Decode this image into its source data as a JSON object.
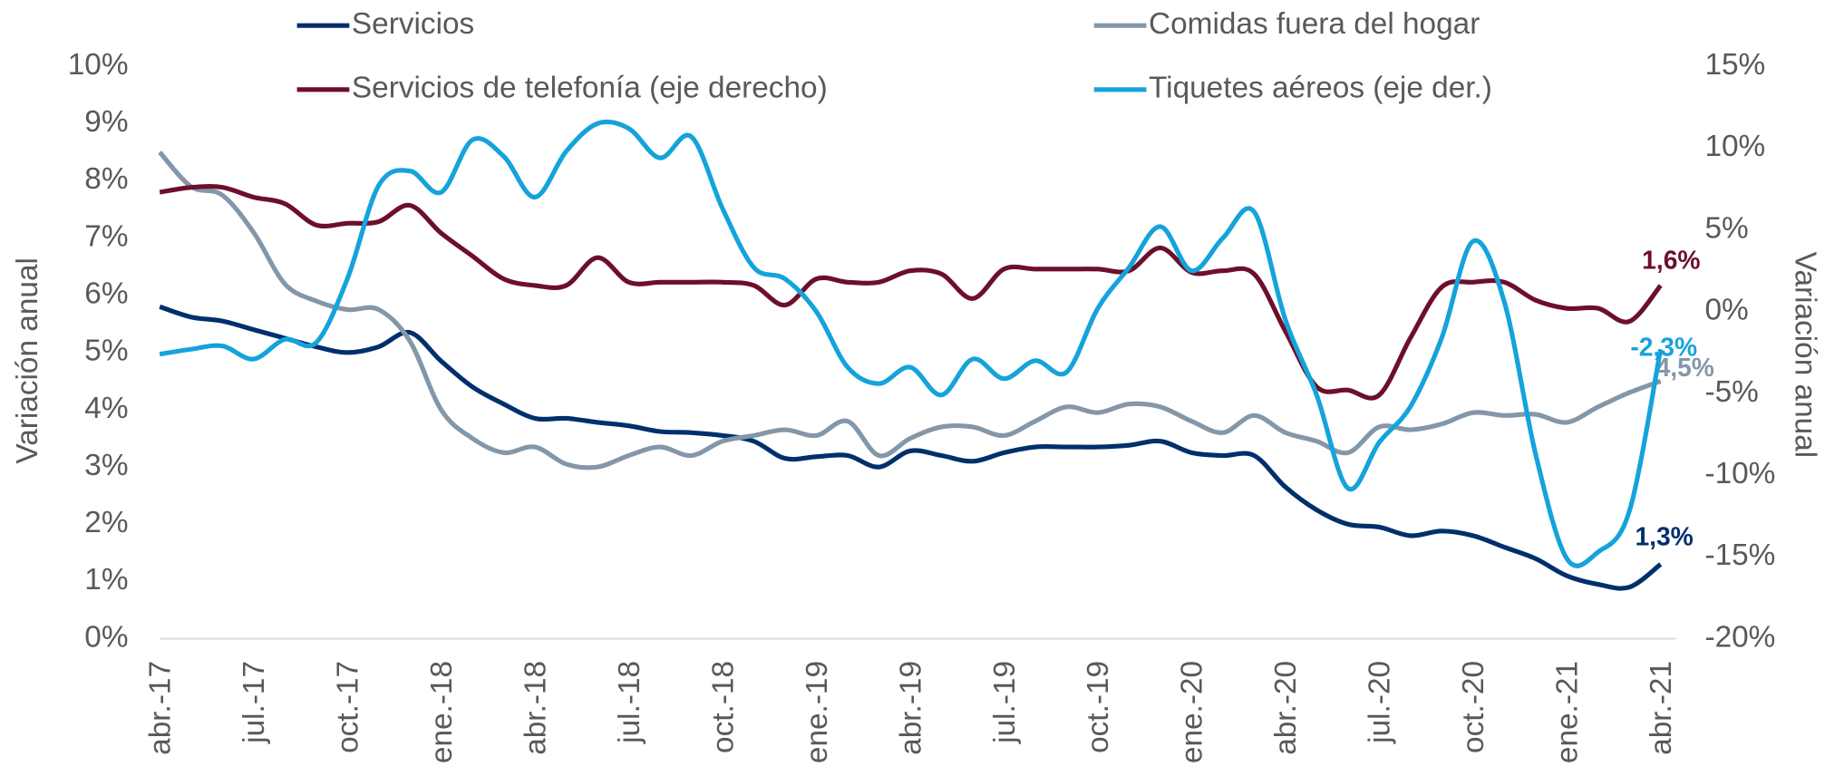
{
  "chart_data": {
    "type": "line",
    "categories": [
      "abr.-17",
      null,
      null,
      "jul.-17",
      null,
      null,
      "oct.-17",
      null,
      null,
      "ene.-18",
      null,
      null,
      "abr.-18",
      null,
      null,
      "jul.-18",
      null,
      null,
      "oct.-18",
      null,
      null,
      "ene.-19",
      null,
      null,
      "abr.-19",
      null,
      null,
      "jul.-19",
      null,
      null,
      "oct.-19",
      null,
      null,
      "ene.-20",
      null,
      null,
      "abr.-20",
      null,
      null,
      "jul.-20",
      null,
      null,
      "oct.-20",
      null,
      null,
      "ene.-21",
      null,
      null,
      "abr.-21"
    ],
    "ylabel": "Variación anual",
    "y2label": "Variación anual",
    "ylim": [
      0,
      10
    ],
    "yticks": [
      {
        "value": 0,
        "label": "0%"
      },
      {
        "value": 1,
        "label": "1%"
      },
      {
        "value": 2,
        "label": "2%"
      },
      {
        "value": 3,
        "label": "3%"
      },
      {
        "value": 4,
        "label": "4%"
      },
      {
        "value": 5,
        "label": "5%"
      },
      {
        "value": 6,
        "label": "6%"
      },
      {
        "value": 7,
        "label": "7%"
      },
      {
        "value": 8,
        "label": "8%"
      },
      {
        "value": 9,
        "label": "9%"
      },
      {
        "value": 10,
        "label": "10%"
      }
    ],
    "y2lim": [
      -20,
      15
    ],
    "y2ticks": [
      {
        "value": -20,
        "label": "-20%"
      },
      {
        "value": -15,
        "label": "-15%"
      },
      {
        "value": -10,
        "label": "-10%"
      },
      {
        "value": -5,
        "label": "-5%"
      },
      {
        "value": 0,
        "label": "0%"
      },
      {
        "value": 5,
        "label": "5%"
      },
      {
        "value": 10,
        "label": "10%"
      },
      {
        "value": 15,
        "label": "15%"
      }
    ],
    "grid": false,
    "series": [
      {
        "name": "Servicios",
        "color": "#002f6c",
        "axis": "y",
        "values": [
          5.8,
          5.62,
          5.55,
          5.4,
          5.25,
          5.1,
          5.0,
          5.1,
          5.35,
          4.85,
          4.4,
          4.1,
          3.85,
          3.85,
          3.78,
          3.72,
          3.62,
          3.6,
          3.55,
          3.45,
          3.15,
          3.18,
          3.2,
          3.0,
          3.28,
          3.2,
          3.1,
          3.25,
          3.35,
          3.35,
          3.35,
          3.38,
          3.45,
          3.25,
          3.2,
          3.2,
          2.65,
          2.25,
          2.0,
          1.95,
          1.8,
          1.88,
          1.8,
          1.6,
          1.4,
          1.1,
          0.95,
          0.9,
          1.3
        ],
        "value_labels": [
          null,
          null,
          null,
          null,
          null,
          null,
          null,
          null,
          null,
          null,
          null,
          null,
          null,
          null,
          null,
          null,
          null,
          null,
          null,
          null,
          null,
          null,
          null,
          null,
          null,
          null,
          null,
          null,
          null,
          null,
          null,
          null,
          null,
          null,
          null,
          null,
          null,
          null,
          null,
          null,
          null,
          null,
          null,
          null,
          null,
          null,
          null,
          null,
          "1,3%"
        ]
      },
      {
        "name": "Comidas fuera del hogar",
        "color": "#8497a8",
        "axis": "y",
        "values": [
          8.5,
          7.9,
          7.75,
          7.1,
          6.2,
          5.9,
          5.75,
          5.75,
          5.2,
          4.0,
          3.5,
          3.25,
          3.35,
          3.05,
          3.0,
          3.2,
          3.35,
          3.2,
          3.45,
          3.55,
          3.65,
          3.55,
          3.8,
          3.2,
          3.5,
          3.7,
          3.7,
          3.55,
          3.8,
          4.05,
          3.95,
          4.1,
          4.05,
          3.8,
          3.6,
          3.9,
          3.6,
          3.45,
          3.25,
          3.7,
          3.65,
          3.75,
          3.95,
          3.9,
          3.92,
          3.78,
          4.05,
          4.3,
          4.5
        ],
        "value_labels": [
          null,
          null,
          null,
          null,
          null,
          null,
          null,
          null,
          null,
          null,
          null,
          null,
          null,
          null,
          null,
          null,
          null,
          null,
          null,
          null,
          null,
          null,
          null,
          null,
          null,
          null,
          null,
          null,
          null,
          null,
          null,
          null,
          null,
          null,
          null,
          null,
          null,
          null,
          null,
          null,
          null,
          null,
          null,
          null,
          null,
          null,
          null,
          null,
          "4,5%"
        ]
      },
      {
        "name": "Servicios de telefonía (eje derecho)",
        "color": "#6d0f2b",
        "axis": "y2",
        "values": [
          7.3,
          7.6,
          7.6,
          7.0,
          6.6,
          5.3,
          5.4,
          5.5,
          6.5,
          4.8,
          3.4,
          2.0,
          1.6,
          1.6,
          3.3,
          1.8,
          1.8,
          1.8,
          1.8,
          1.6,
          0.4,
          2.0,
          1.8,
          1.8,
          2.5,
          2.3,
          0.8,
          2.6,
          2.6,
          2.6,
          2.6,
          2.5,
          3.9,
          2.4,
          2.5,
          2.3,
          -1.2,
          -4.6,
          -4.8,
          -5.1,
          -1.6,
          1.5,
          1.8,
          1.8,
          0.7,
          0.2,
          0.2,
          -0.6,
          1.6
        ],
        "value_labels": [
          null,
          null,
          null,
          null,
          null,
          null,
          null,
          null,
          null,
          null,
          null,
          null,
          null,
          null,
          null,
          null,
          null,
          null,
          null,
          null,
          null,
          null,
          null,
          null,
          null,
          null,
          null,
          null,
          null,
          null,
          null,
          null,
          null,
          null,
          null,
          null,
          null,
          null,
          null,
          null,
          null,
          null,
          null,
          null,
          null,
          null,
          null,
          null,
          "1,6%"
        ]
      },
      {
        "name": "Tiquetes aéreos (eje der.)",
        "color": "#14a3db",
        "axis": "y2",
        "values": [
          -2.6,
          -2.3,
          -2.1,
          -2.9,
          -1.7,
          -1.9,
          2.0,
          7.7,
          8.6,
          7.3,
          10.5,
          9.5,
          7.0,
          9.8,
          11.5,
          11.2,
          9.4,
          10.7,
          6.3,
          2.7,
          2.0,
          0,
          -3.4,
          -4.4,
          -3.4,
          -5.1,
          -2.9,
          -4.1,
          -3.0,
          -3.7,
          0.2,
          2.7,
          5.2,
          2.5,
          4.5,
          6.1,
          -0.5,
          -5.1,
          -10.8,
          -8.0,
          -5.8,
          -1.6,
          4.3,
          0.6,
          -8.7,
          -15.1,
          -14.7,
          -12.2,
          -2.3
        ],
        "value_labels": [
          null,
          null,
          null,
          null,
          null,
          null,
          null,
          null,
          null,
          null,
          null,
          null,
          null,
          null,
          null,
          null,
          null,
          null,
          null,
          null,
          null,
          null,
          null,
          null,
          null,
          null,
          null,
          null,
          null,
          null,
          null,
          null,
          null,
          null,
          null,
          null,
          null,
          null,
          null,
          null,
          null,
          null,
          null,
          null,
          null,
          null,
          null,
          null,
          "-2,3%"
        ]
      }
    ]
  }
}
